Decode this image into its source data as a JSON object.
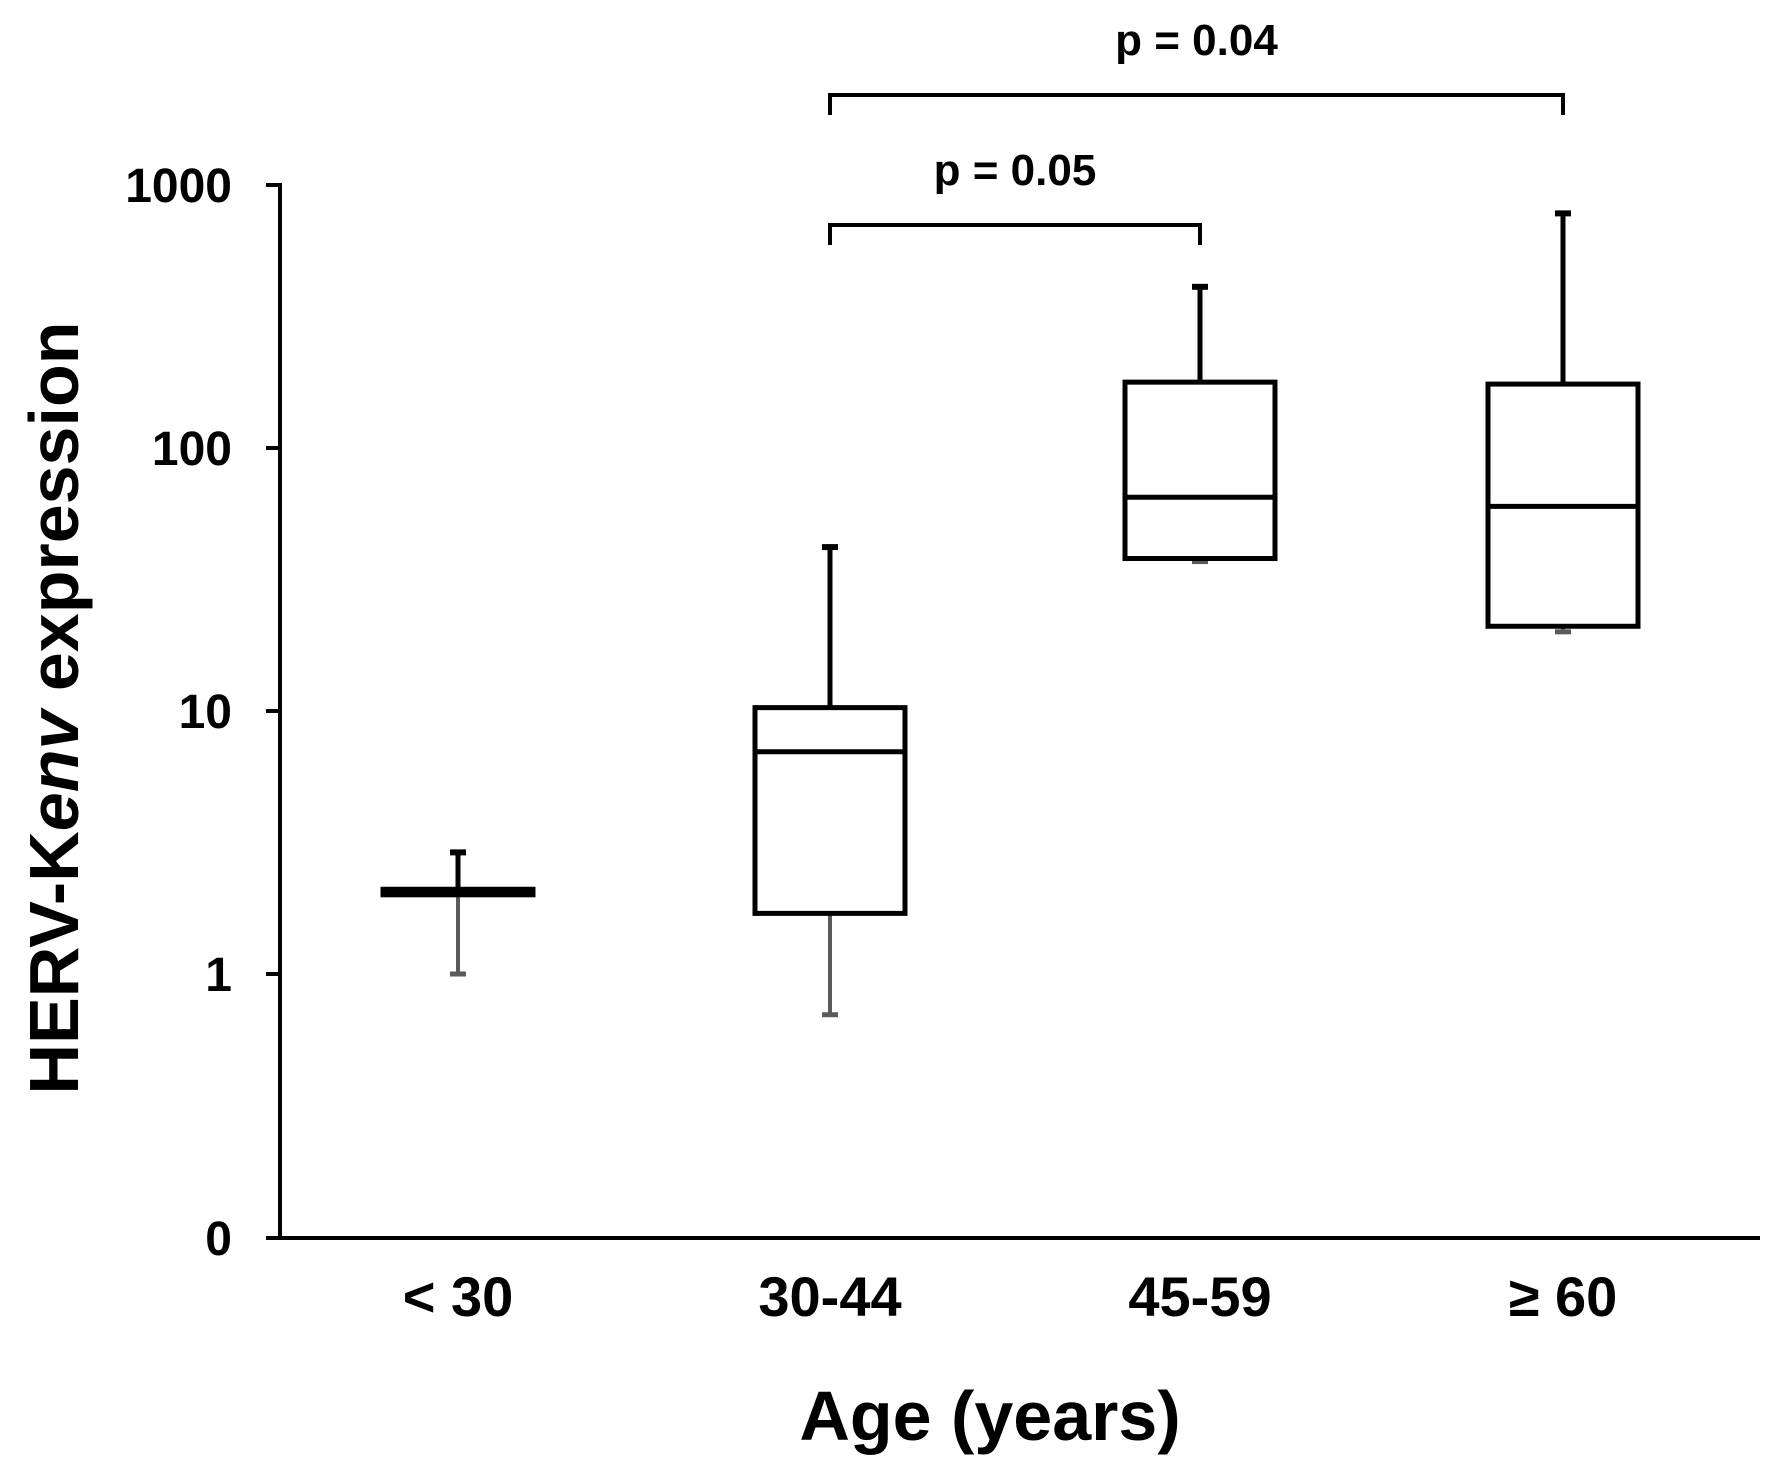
{
  "chart_data": {
    "type": "boxplot",
    "xlabel": "Age (years)",
    "ylabel_parts": [
      "HERV-K",
      "env",
      " expression"
    ],
    "yscale": "log",
    "yticks": [
      {
        "value": 0,
        "label": "0"
      },
      {
        "value": 1,
        "label": "1"
      },
      {
        "value": 10,
        "label": "10"
      },
      {
        "value": 100,
        "label": "100"
      },
      {
        "value": 1000,
        "label": "1000"
      }
    ],
    "categories": [
      "< 30",
      "30-44",
      "45-59",
      "≥ 60"
    ],
    "boxes": [
      {
        "category": "< 30",
        "min": 1.0,
        "q1": 2.0,
        "median": 2.05,
        "q3": 2.1,
        "max": 2.9
      },
      {
        "category": "30-44",
        "min": 0.7,
        "q1": 1.7,
        "median": 7.0,
        "q3": 10.3,
        "max": 42
      },
      {
        "category": "45-59",
        "min": 37,
        "q1": 38,
        "median": 65,
        "q3": 178,
        "max": 410
      },
      {
        "category": "≥ 60",
        "min": 20,
        "q1": 21,
        "median": 60,
        "q3": 175,
        "max": 780
      }
    ],
    "comparisons": [
      {
        "from": 1,
        "to": 2,
        "label": "p = 0.05",
        "level": 1
      },
      {
        "from": 1,
        "to": 3,
        "label": "p = 0.04",
        "level": 2
      }
    ],
    "colors": {
      "stroke": "#000000",
      "lower_whisker": "#5a5a5a",
      "background": "#ffffff"
    }
  }
}
